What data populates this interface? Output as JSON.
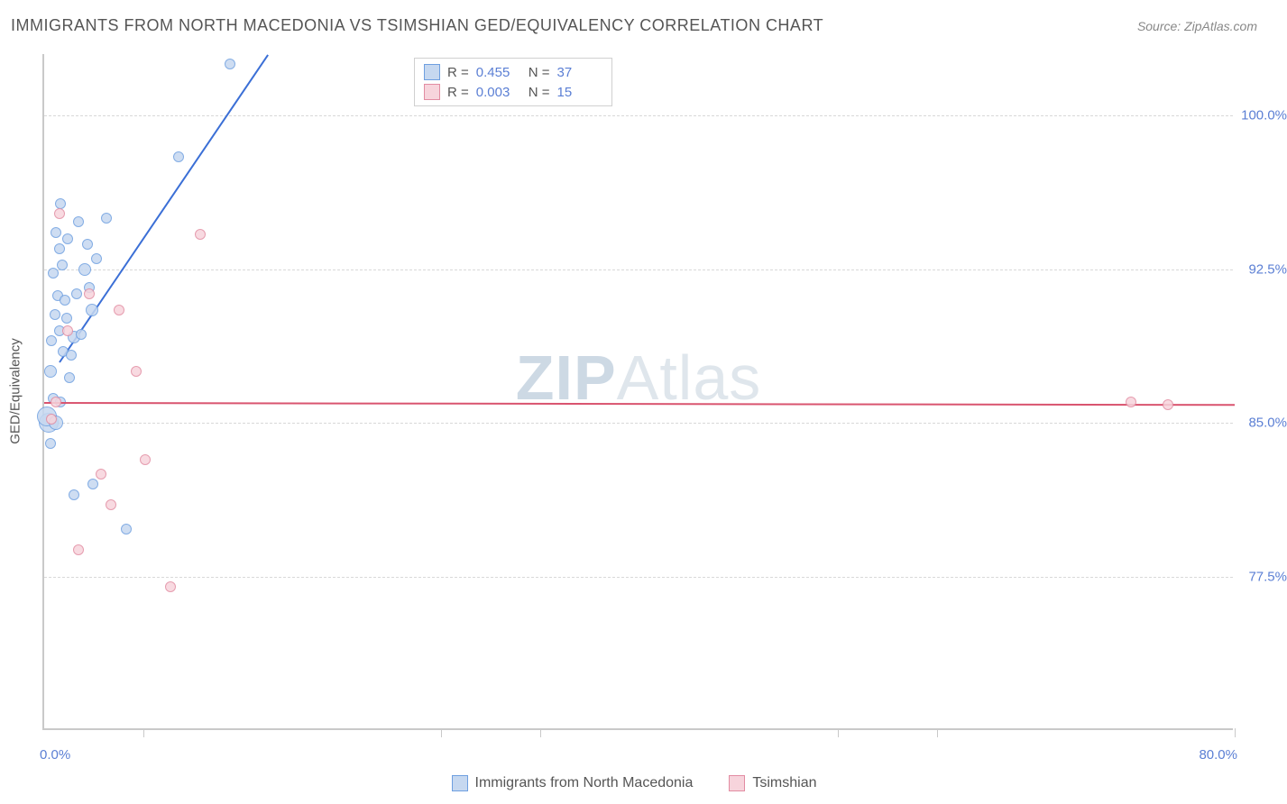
{
  "title": "IMMIGRANTS FROM NORTH MACEDONIA VS TSIMSHIAN GED/EQUIVALENCY CORRELATION CHART",
  "source_label": "Source: ZipAtlas.com",
  "watermark": {
    "part1": "ZIP",
    "part2": "Atlas"
  },
  "y_axis": {
    "title": "GED/Equivalency",
    "min": 70.0,
    "max": 103.0,
    "ticks": [
      77.5,
      85.0,
      92.5,
      100.0
    ],
    "tick_labels": [
      "77.5%",
      "85.0%",
      "92.5%",
      "100.0%"
    ]
  },
  "x_axis": {
    "min": 0.0,
    "max": 80.0,
    "label_left": "0.0%",
    "label_right": "80.0%",
    "tick_positions": [
      6.67,
      26.67,
      33.33,
      53.33,
      60.0,
      80.0
    ]
  },
  "series": [
    {
      "key": "s1",
      "label": "Immigrants from North Macedonia",
      "fill": "#c6d8f0",
      "stroke": "#6e9fe0",
      "line_color": "#3b6fd6",
      "r_value": "0.455",
      "n_value": "37",
      "points": [
        {
          "x": 0.3,
          "y": 85.0,
          "r": 11
        },
        {
          "x": 0.2,
          "y": 85.3,
          "r": 11
        },
        {
          "x": 0.8,
          "y": 85.0,
          "r": 8
        },
        {
          "x": 0.6,
          "y": 86.2,
          "r": 6
        },
        {
          "x": 1.1,
          "y": 86.0,
          "r": 6
        },
        {
          "x": 0.4,
          "y": 87.5,
          "r": 7
        },
        {
          "x": 1.3,
          "y": 88.5,
          "r": 6
        },
        {
          "x": 1.8,
          "y": 88.3,
          "r": 6
        },
        {
          "x": 0.5,
          "y": 89.0,
          "r": 6
        },
        {
          "x": 2.0,
          "y": 89.2,
          "r": 7
        },
        {
          "x": 1.0,
          "y": 89.5,
          "r": 6
        },
        {
          "x": 2.5,
          "y": 89.3,
          "r": 6
        },
        {
          "x": 0.7,
          "y": 90.3,
          "r": 6
        },
        {
          "x": 1.5,
          "y": 90.1,
          "r": 6
        },
        {
          "x": 3.2,
          "y": 90.5,
          "r": 7
        },
        {
          "x": 0.9,
          "y": 91.2,
          "r": 6
        },
        {
          "x": 2.2,
          "y": 91.3,
          "r": 6
        },
        {
          "x": 1.4,
          "y": 91.0,
          "r": 6
        },
        {
          "x": 3.0,
          "y": 91.6,
          "r": 6
        },
        {
          "x": 0.6,
          "y": 92.3,
          "r": 6
        },
        {
          "x": 2.7,
          "y": 92.5,
          "r": 7
        },
        {
          "x": 1.2,
          "y": 92.7,
          "r": 6
        },
        {
          "x": 3.5,
          "y": 93.0,
          "r": 6
        },
        {
          "x": 1.0,
          "y": 93.5,
          "r": 6
        },
        {
          "x": 2.9,
          "y": 93.7,
          "r": 6
        },
        {
          "x": 1.6,
          "y": 94.0,
          "r": 6
        },
        {
          "x": 0.8,
          "y": 94.3,
          "r": 6
        },
        {
          "x": 2.3,
          "y": 94.8,
          "r": 6
        },
        {
          "x": 4.2,
          "y": 95.0,
          "r": 6
        },
        {
          "x": 1.1,
          "y": 95.7,
          "r": 6
        },
        {
          "x": 2.0,
          "y": 81.5,
          "r": 6
        },
        {
          "x": 3.3,
          "y": 82.0,
          "r": 6
        },
        {
          "x": 5.5,
          "y": 79.8,
          "r": 6
        },
        {
          "x": 9.0,
          "y": 98.0,
          "r": 6
        },
        {
          "x": 12.5,
          "y": 102.5,
          "r": 6
        },
        {
          "x": 0.4,
          "y": 84.0,
          "r": 6
        },
        {
          "x": 1.7,
          "y": 87.2,
          "r": 6
        }
      ],
      "trend": {
        "x1": 1.0,
        "y1": 88.0,
        "x2": 15.0,
        "y2": 103.0
      }
    },
    {
      "key": "s2",
      "label": "Tsimshian",
      "fill": "#f7d4dc",
      "stroke": "#e28ca2",
      "line_color": "#d9546f",
      "r_value": "0.003",
      "n_value": "15",
      "points": [
        {
          "x": 0.8,
          "y": 86.0,
          "r": 6
        },
        {
          "x": 1.6,
          "y": 89.5,
          "r": 6
        },
        {
          "x": 3.0,
          "y": 91.3,
          "r": 6
        },
        {
          "x": 5.0,
          "y": 90.5,
          "r": 6
        },
        {
          "x": 6.2,
          "y": 87.5,
          "r": 6
        },
        {
          "x": 10.5,
          "y": 94.2,
          "r": 6
        },
        {
          "x": 2.3,
          "y": 78.8,
          "r": 6
        },
        {
          "x": 3.8,
          "y": 82.5,
          "r": 6
        },
        {
          "x": 4.5,
          "y": 81.0,
          "r": 6
        },
        {
          "x": 6.8,
          "y": 83.2,
          "r": 6
        },
        {
          "x": 8.5,
          "y": 77.0,
          "r": 6
        },
        {
          "x": 73.0,
          "y": 86.0,
          "r": 6
        },
        {
          "x": 75.5,
          "y": 85.9,
          "r": 6
        },
        {
          "x": 1.0,
          "y": 95.2,
          "r": 6
        },
        {
          "x": 0.5,
          "y": 85.2,
          "r": 6
        }
      ],
      "trend": {
        "x1": 0.0,
        "y1": 86.0,
        "x2": 80.0,
        "y2": 85.9
      }
    }
  ],
  "legend_labels": {
    "r_prefix": "R =",
    "n_prefix": "N ="
  }
}
